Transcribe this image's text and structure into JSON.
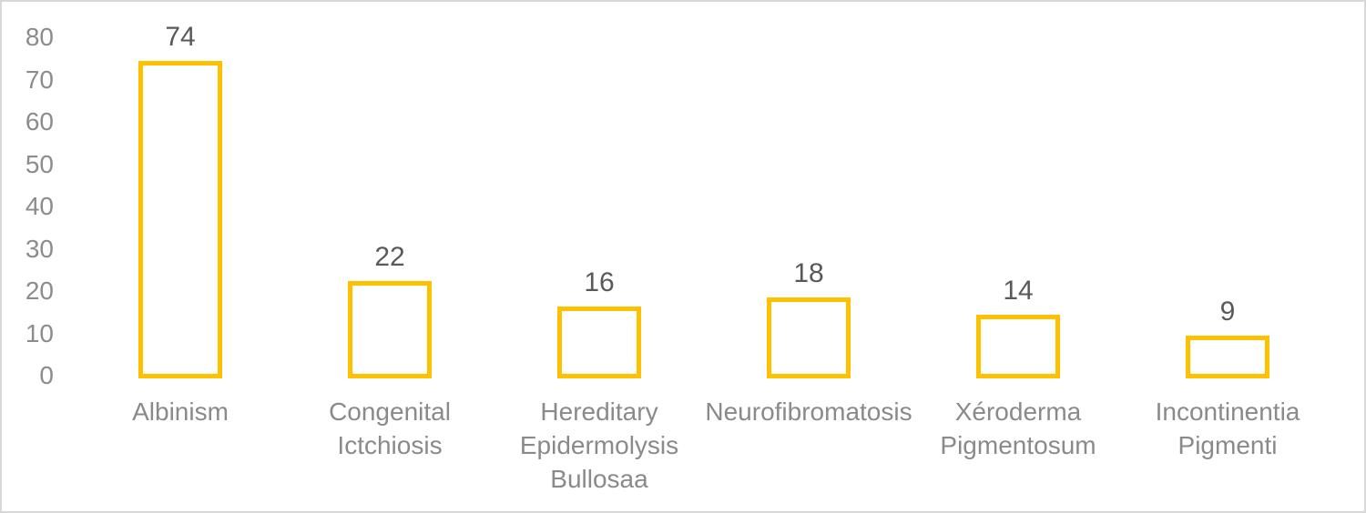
{
  "chart_data": {
    "type": "bar",
    "title": "",
    "xlabel": "",
    "ylabel": "",
    "categories": [
      "Albinism",
      "Congenital Ictchiosis",
      "Hereditary Epidermolysis Bullosaa",
      "Neurofibromatosis",
      "Xéroderma Pigmentosum",
      "Incontinentia Pigmenti"
    ],
    "values": [
      74,
      22,
      16,
      18,
      14,
      9
    ],
    "data_labels": [
      "74",
      "22",
      "16",
      "18",
      "14",
      "9"
    ],
    "ylim": [
      0,
      80
    ],
    "yticks": [
      80,
      70,
      60,
      50,
      40,
      30,
      20,
      10,
      0
    ],
    "grid": false,
    "legend_position": "none",
    "bar_style": "outline-only",
    "colors": {
      "bar_outline": "#FFC000",
      "bar_fill": "#FFFFFF",
      "axis_tick_text": "#8C8C8C",
      "category_text": "#8A8A8A",
      "data_label_text": "#595959",
      "chart_frame": "#D8D8D8",
      "background": "#FFFFFF"
    }
  }
}
